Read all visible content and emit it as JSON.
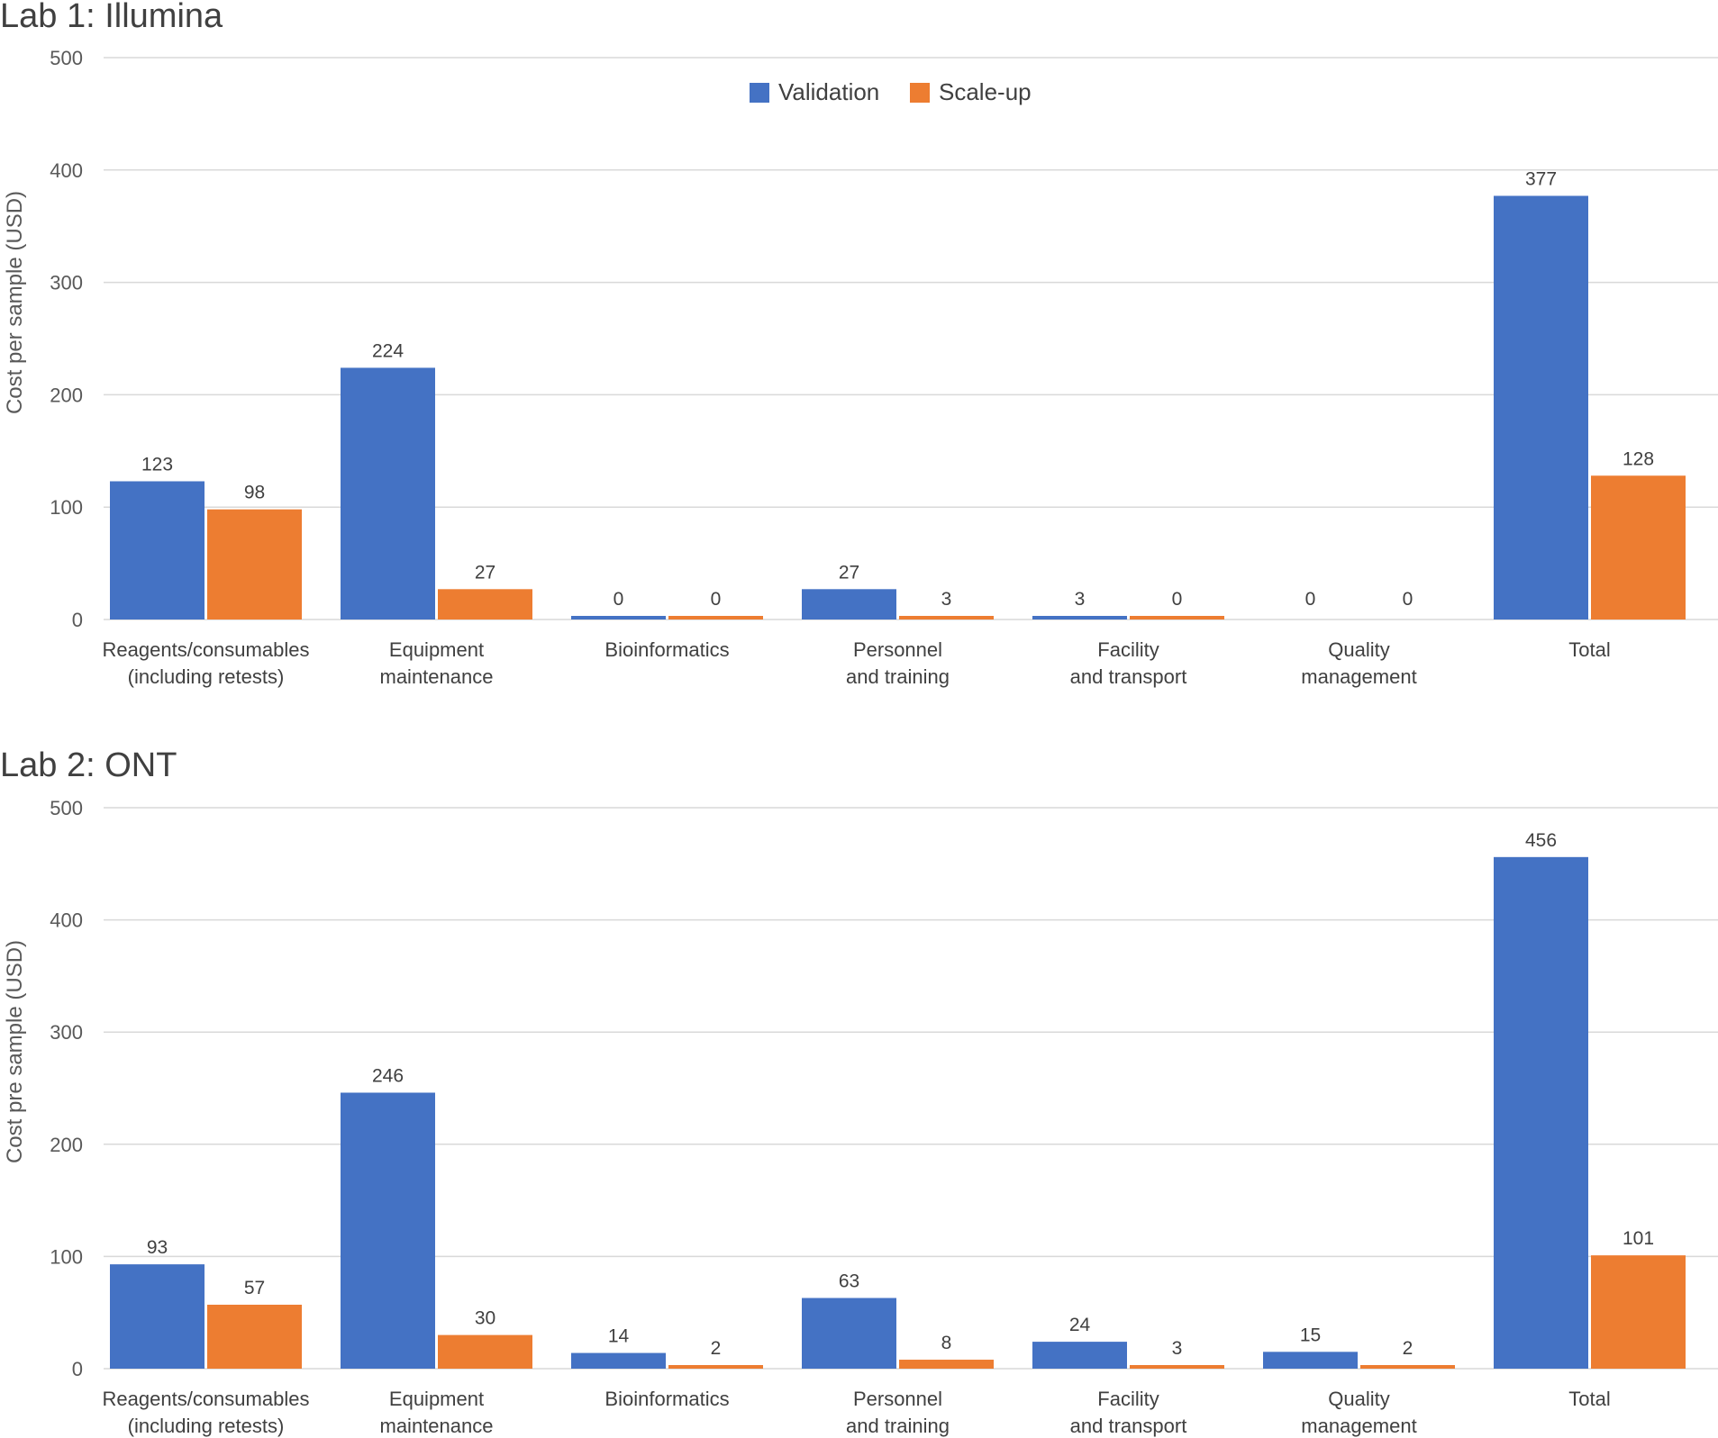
{
  "chart_data": [
    {
      "type": "bar",
      "title": "Lab 1: Illumina",
      "ylabel": "Cost per sample (USD)",
      "xlabel": "",
      "ylim": [
        0,
        500
      ],
      "yticks": [
        0,
        100,
        200,
        300,
        400,
        500
      ],
      "grid": true,
      "legend": "top-center",
      "categories": [
        [
          "Reagents/consumables",
          "(including retests)"
        ],
        [
          "Equipment",
          "maintenance"
        ],
        [
          "Bioinformatics"
        ],
        [
          "Personnel",
          "and training"
        ],
        [
          "Facility",
          "and transport"
        ],
        [
          "Quality",
          "management"
        ],
        [
          "Total"
        ]
      ],
      "series": [
        {
          "name": "Validation",
          "color": "#4472C4",
          "values": [
            123,
            224,
            0,
            27,
            3,
            0,
            377
          ]
        },
        {
          "name": "Scale-up",
          "color": "#ED7D31",
          "values": [
            98,
            27,
            0,
            3,
            0,
            0,
            128
          ]
        }
      ]
    },
    {
      "type": "bar",
      "title": "Lab 2: ONT",
      "ylabel": "Cost pre sample (USD)",
      "xlabel": "",
      "ylim": [
        0,
        500
      ],
      "yticks": [
        0,
        100,
        200,
        300,
        400,
        500
      ],
      "grid": true,
      "legend": "none",
      "categories": [
        [
          "Reagents/consumables",
          "(including retests)"
        ],
        [
          "Equipment",
          "maintenance"
        ],
        [
          "Bioinformatics"
        ],
        [
          "Personnel",
          "and training"
        ],
        [
          "Facility",
          "and transport"
        ],
        [
          "Quality",
          "management"
        ],
        [
          "Total"
        ]
      ],
      "series": [
        {
          "name": "Validation",
          "color": "#4472C4",
          "values": [
            93,
            246,
            14,
            63,
            24,
            15,
            456
          ]
        },
        {
          "name": "Scale-up",
          "color": "#ED7D31",
          "values": [
            57,
            30,
            2,
            8,
            3,
            2,
            101
          ]
        }
      ]
    }
  ]
}
